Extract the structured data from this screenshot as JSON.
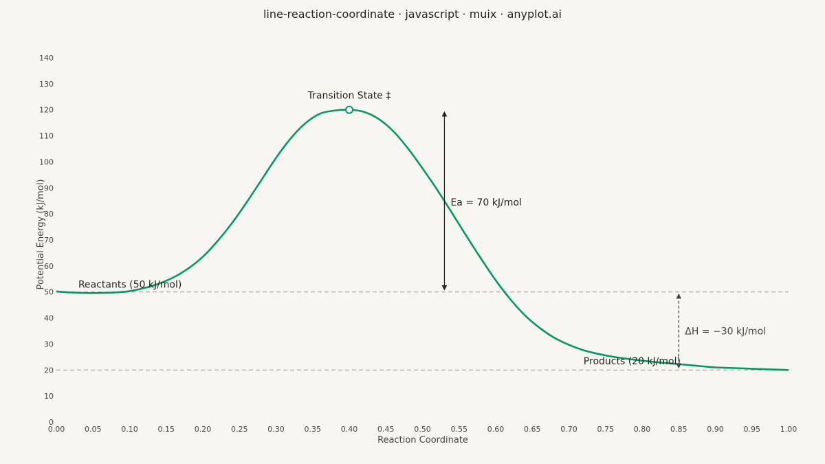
{
  "chart_data": {
    "type": "line",
    "title": "line-reaction-coordinate · javascript · muix · anyplot.ai",
    "xlabel": "Reaction Coordinate",
    "ylabel": "Potential Energy (kJ/mol)",
    "xlim": [
      0,
      1
    ],
    "ylim": [
      0,
      140
    ],
    "x_ticks": [
      "0.00",
      "0.05",
      "0.10",
      "0.15",
      "0.20",
      "0.25",
      "0.30",
      "0.35",
      "0.40",
      "0.45",
      "0.50",
      "0.55",
      "0.60",
      "0.65",
      "0.70",
      "0.75",
      "0.80",
      "0.85",
      "0.90",
      "0.95",
      "1.00"
    ],
    "y_ticks": [
      "0",
      "10",
      "20",
      "30",
      "40",
      "50",
      "60",
      "70",
      "80",
      "90",
      "100",
      "110",
      "120",
      "130",
      "140"
    ],
    "grid": false,
    "colors": {
      "curve": "#079669",
      "arrow_ea": "#222222",
      "arrow_dh": "#444444",
      "guide": "#999999"
    },
    "series": [
      {
        "x": [
          0.0,
          0.02,
          0.04,
          0.06,
          0.08,
          0.1,
          0.12,
          0.14,
          0.16,
          0.18,
          0.2,
          0.22,
          0.24,
          0.26,
          0.28,
          0.3,
          0.32,
          0.34,
          0.36,
          0.38,
          0.4,
          0.42,
          0.44,
          0.46,
          0.48,
          0.5,
          0.52,
          0.54,
          0.56,
          0.58,
          0.6,
          0.62,
          0.64,
          0.66,
          0.68,
          0.7,
          0.72,
          0.74,
          0.76,
          0.78,
          0.8,
          0.82,
          0.84,
          0.86,
          0.88,
          0.9,
          0.92,
          0.94,
          0.96,
          0.98,
          1.0
        ],
        "y": [
          50.2,
          49.8,
          49.6,
          49.6,
          49.8,
          50.3,
          51.5,
          53.2,
          55.6,
          59.0,
          63.5,
          69.5,
          76.5,
          84.5,
          93.0,
          101.5,
          109.0,
          114.8,
          118.5,
          119.7,
          120.0,
          119.2,
          116.5,
          111.8,
          105.2,
          97.5,
          89.3,
          80.5,
          71.5,
          62.8,
          54.5,
          47.2,
          41.0,
          36.2,
          32.4,
          29.7,
          27.6,
          26.2,
          25.1,
          24.3,
          23.6,
          23.0,
          22.5,
          22.0,
          21.5,
          21.0,
          20.8,
          20.6,
          20.4,
          20.2,
          20.0
        ]
      }
    ],
    "reference_lines": [
      {
        "y": 50,
        "style": "dashed"
      },
      {
        "y": 20,
        "style": "dashed"
      }
    ],
    "annotations": {
      "reactants": {
        "text": "Reactants (50 kJ/mol)",
        "x": 0.03,
        "y": 53
      },
      "products": {
        "text": "Products (20 kJ/mol)",
        "x": 0.72,
        "y": 23
      },
      "transition_state": {
        "text": "Transition State ‡",
        "x": 0.4,
        "y": 120
      },
      "ea": {
        "text": "Ea = 70 kJ/mol",
        "arrow_x": 0.53,
        "y_from": 50,
        "y_to": 120
      },
      "dh": {
        "text": "ΔH = −30 kJ/mol",
        "arrow_x": 0.85,
        "y_from": 50,
        "y_to": 20
      }
    }
  }
}
